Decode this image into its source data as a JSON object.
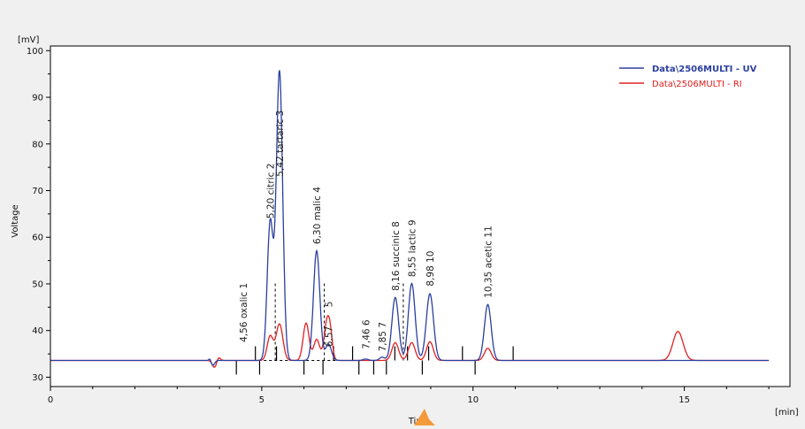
{
  "chart_data": {
    "type": "line",
    "title": "",
    "xlabel": "Time",
    "xunit": "[min]",
    "ylabel": "Voltage",
    "yunit": "[mV]",
    "xlim": [
      0,
      17.5
    ],
    "ylim": [
      28,
      101
    ],
    "xticks": [
      0,
      5,
      10,
      15
    ],
    "yticks": [
      30,
      40,
      50,
      60,
      70,
      80,
      90,
      100
    ],
    "grid": false,
    "legend_position": "top-right",
    "baseline": 33.6,
    "series": [
      {
        "name": "Data\\2506MULTI - UV",
        "color": "#2b3fa0",
        "peaks": [
          {
            "x": 3.83,
            "h": -1.2,
            "w": 0.05
          },
          {
            "x": 3.78,
            "h": 0.9,
            "w": 0.03
          },
          {
            "x": 5.2,
            "h": 29.5,
            "w": 0.07
          },
          {
            "x": 5.42,
            "h": 62.0,
            "w": 0.075
          },
          {
            "x": 6.3,
            "h": 23.5,
            "w": 0.075
          },
          {
            "x": 6.58,
            "h": 3.5,
            "w": 0.07
          },
          {
            "x": 7.46,
            "h": 0.3,
            "w": 0.06
          },
          {
            "x": 7.85,
            "h": 0.7,
            "w": 0.06
          },
          {
            "x": 8.16,
            "h": 13.5,
            "w": 0.08
          },
          {
            "x": 8.55,
            "h": 16.5,
            "w": 0.08
          },
          {
            "x": 8.98,
            "h": 14.3,
            "w": 0.085
          },
          {
            "x": 10.35,
            "h": 12.0,
            "w": 0.08
          }
        ]
      },
      {
        "name": "Data\\2506MULTI - RI",
        "color": "#e02020",
        "peaks": [
          {
            "x": 3.88,
            "h": -1.5,
            "w": 0.05
          },
          {
            "x": 3.98,
            "h": 0.7,
            "w": 0.04
          },
          {
            "x": 5.2,
            "h": 5.2,
            "w": 0.07
          },
          {
            "x": 5.42,
            "h": 7.8,
            "w": 0.08
          },
          {
            "x": 6.05,
            "h": 8.0,
            "w": 0.07
          },
          {
            "x": 6.3,
            "h": 4.5,
            "w": 0.07
          },
          {
            "x": 6.55,
            "h": 8.5,
            "w": 0.07
          },
          {
            "x": 6.63,
            "h": 3.0,
            "w": 0.05
          },
          {
            "x": 8.16,
            "h": 3.8,
            "w": 0.08
          },
          {
            "x": 8.55,
            "h": 3.8,
            "w": 0.08
          },
          {
            "x": 8.98,
            "h": 4.0,
            "w": 0.08
          },
          {
            "x": 10.35,
            "h": 2.6,
            "w": 0.08
          },
          {
            "x": 14.85,
            "h": 6.2,
            "w": 0.12
          }
        ]
      }
    ],
    "peak_labels": [
      {
        "text": "4,56 oxalic  1",
        "x": 4.56,
        "y": 37.5
      },
      {
        "text": "5,20 citric  2",
        "x": 5.2,
        "y": 64.0
      },
      {
        "text": "5,42 tartaric  3",
        "x": 5.42,
        "y": 73.0
      },
      {
        "text": "6,30 malic  4",
        "x": 6.3,
        "y": 58.5
      },
      {
        "text": "5",
        "x": 6.58,
        "y": 45.0
      },
      {
        "text": "6,57",
        "x": 6.58,
        "y": 36.5
      },
      {
        "text": "7,46  6",
        "x": 7.46,
        "y": 36.0
      },
      {
        "text": "7,85  7",
        "x": 7.85,
        "y": 35.5
      },
      {
        "text": "8,16 succinic  8",
        "x": 8.16,
        "y": 48.5
      },
      {
        "text": "8,55 lactic  9",
        "x": 8.55,
        "y": 51.5
      },
      {
        "text": "8,98  10",
        "x": 8.98,
        "y": 49.5
      },
      {
        "text": "10,35 acetic  11",
        "x": 10.35,
        "y": 47.0
      }
    ],
    "integration_markers": {
      "up": [
        4.85,
        5.35,
        6.7,
        7.15,
        8.15,
        8.45,
        8.95,
        9.75,
        10.95
      ],
      "down": [
        4.4,
        4.95,
        6.0,
        6.45,
        7.3,
        7.65,
        7.95,
        8.8,
        10.05
      ]
    },
    "dashed_drops": [
      5.32,
      6.48,
      8.35
    ]
  }
}
